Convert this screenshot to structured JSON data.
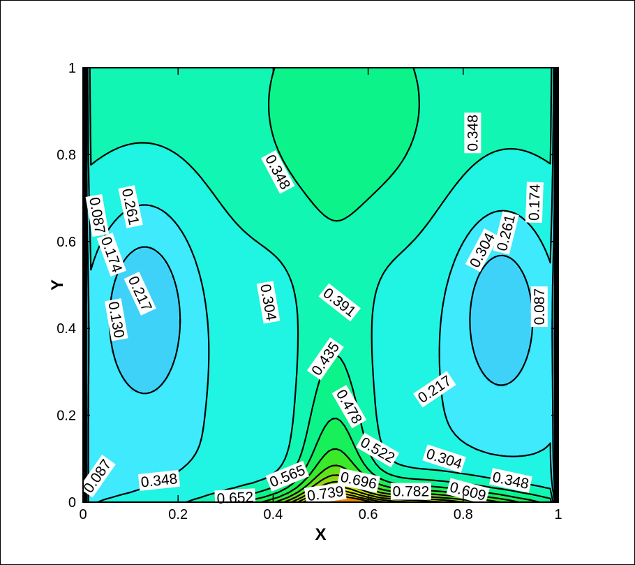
{
  "chart_data": {
    "type": "contour",
    "xlabel": "X",
    "ylabel": "Y",
    "xlim": [
      0,
      1
    ],
    "ylim": [
      0,
      1
    ],
    "x_ticks": [
      "0",
      "0.2",
      "0.4",
      "0.6",
      "0.8",
      "1"
    ],
    "y_ticks": [
      "0",
      "0.2",
      "0.4",
      "0.6",
      "0.8",
      "1"
    ],
    "contour_levels": [
      0.087,
      0.13,
      0.174,
      0.217,
      0.261,
      0.304,
      0.348,
      0.391,
      0.435,
      0.478,
      0.522,
      0.565,
      0.609,
      0.652,
      0.696,
      0.739,
      0.782
    ],
    "level_labels": [
      {
        "text": "0.348",
        "x": 0.41,
        "y": 0.76,
        "angle": 62
      },
      {
        "text": "0.348",
        "x": 0.82,
        "y": 0.85,
        "angle": -90
      },
      {
        "text": "0.087",
        "x": 0.03,
        "y": 0.66,
        "angle": 80
      },
      {
        "text": "0.261",
        "x": 0.1,
        "y": 0.68,
        "angle": 78
      },
      {
        "text": "0.174",
        "x": 0.06,
        "y": 0.57,
        "angle": 70
      },
      {
        "text": "0.217",
        "x": 0.12,
        "y": 0.48,
        "angle": 65
      },
      {
        "text": "0.130",
        "x": 0.07,
        "y": 0.42,
        "angle": 80
      },
      {
        "text": "0.304",
        "x": 0.39,
        "y": 0.46,
        "angle": 80
      },
      {
        "text": "0.391",
        "x": 0.54,
        "y": 0.46,
        "angle": 38
      },
      {
        "text": "0.304",
        "x": 0.84,
        "y": 0.58,
        "angle": -62
      },
      {
        "text": "0.261",
        "x": 0.89,
        "y": 0.62,
        "angle": -76
      },
      {
        "text": "0.174",
        "x": 0.95,
        "y": 0.69,
        "angle": -88
      },
      {
        "text": "0.087",
        "x": 0.96,
        "y": 0.45,
        "angle": -90
      },
      {
        "text": "0.435",
        "x": 0.51,
        "y": 0.33,
        "angle": -55
      },
      {
        "text": "0.217",
        "x": 0.74,
        "y": 0.26,
        "angle": -34
      },
      {
        "text": "0.478",
        "x": 0.56,
        "y": 0.22,
        "angle": 60
      },
      {
        "text": "0.522",
        "x": 0.62,
        "y": 0.12,
        "angle": 30
      },
      {
        "text": "0.304",
        "x": 0.76,
        "y": 0.1,
        "angle": 18
      },
      {
        "text": "0.565",
        "x": 0.43,
        "y": 0.06,
        "angle": -22
      },
      {
        "text": "0.696",
        "x": 0.58,
        "y": 0.05,
        "angle": 12
      },
      {
        "text": "0.087",
        "x": 0.03,
        "y": 0.06,
        "angle": -55
      },
      {
        "text": "0.348",
        "x": 0.16,
        "y": 0.05,
        "angle": -6
      },
      {
        "text": "0.348",
        "x": 0.9,
        "y": 0.05,
        "angle": 12
      },
      {
        "text": "0.739",
        "x": 0.51,
        "y": 0.02,
        "angle": -8
      },
      {
        "text": "0.782",
        "x": 0.69,
        "y": 0.025,
        "angle": 0
      },
      {
        "text": "0.609",
        "x": 0.81,
        "y": 0.025,
        "angle": 15
      },
      {
        "text": "0.652",
        "x": 0.32,
        "y": 0.01,
        "angle": -3
      }
    ],
    "colormap": [
      "#0a30f0",
      "#1e6bf2",
      "#2f8ff5",
      "#3bb0f7",
      "#3fd2f9",
      "#3eeafb",
      "#20f4e2",
      "#12f6b4",
      "#0cf38a",
      "#18f05a",
      "#3ae92a",
      "#66e01a",
      "#92d512",
      "#b8e30c",
      "#d8ef06",
      "#eef700",
      "#f0c200",
      "#ea8800"
    ]
  }
}
